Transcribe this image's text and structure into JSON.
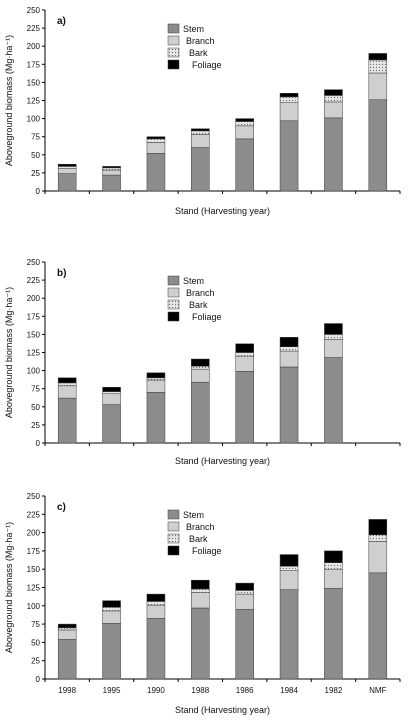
{
  "figure": {
    "panels": [
      "a)",
      "b)",
      "c)"
    ]
  },
  "chart_data": [
    {
      "type": "bar",
      "stacked": true,
      "panel_label": "a)",
      "categories": [
        "1998",
        "1995",
        "1990",
        "1988",
        "1986",
        "1984",
        "1982",
        "NMF"
      ],
      "show_tick_labels": false,
      "series": [
        {
          "name": "Stem",
          "color": "#8c8c8c",
          "pattern": "solid",
          "values": [
            24,
            22,
            52,
            60,
            72,
            97,
            101,
            126
          ]
        },
        {
          "name": "Branch",
          "color": "#cfcfcf",
          "pattern": "solid",
          "values": [
            7,
            7,
            15,
            18,
            18,
            25,
            22,
            37
          ]
        },
        {
          "name": "Bark",
          "color": "#e6e6e6",
          "pattern": "dotted",
          "values": [
            3,
            3,
            5,
            5,
            6,
            8,
            9,
            18
          ]
        },
        {
          "name": "Foliage",
          "color": "#000000",
          "pattern": "solid",
          "values": [
            3,
            2,
            3,
            3,
            4,
            5,
            8,
            9
          ]
        }
      ],
      "xlabel": "Stand (Harvesting year)",
      "ylabel": "Aboveground biomass (Mg·ha⁻¹)",
      "ylim": [
        0,
        250
      ],
      "yticks": [
        "0",
        "25",
        "50",
        "75",
        "100",
        "125",
        "150",
        "175",
        "200",
        "225",
        "250"
      ],
      "grid": false,
      "legend_position": "top-center"
    },
    {
      "type": "bar",
      "stacked": true,
      "panel_label": "b)",
      "categories": [
        "1998",
        "1995",
        "1990",
        "1988",
        "1986",
        "1984",
        "1982"
      ],
      "show_tick_labels": false,
      "series": [
        {
          "name": "Stem",
          "color": "#8c8c8c",
          "pattern": "solid",
          "values": [
            62,
            53,
            70,
            84,
            99,
            105,
            118
          ]
        },
        {
          "name": "Branch",
          "color": "#cfcfcf",
          "pattern": "solid",
          "values": [
            17,
            15,
            17,
            18,
            21,
            22,
            25
          ]
        },
        {
          "name": "Bark",
          "color": "#e6e6e6",
          "pattern": "dotted",
          "values": [
            4,
            3,
            3,
            4,
            5,
            6,
            7
          ]
        },
        {
          "name": "Foliage",
          "color": "#000000",
          "pattern": "solid",
          "values": [
            7,
            6,
            7,
            10,
            12,
            13,
            15
          ]
        }
      ],
      "xlabel": "Stand (Harvesting year)",
      "ylabel": "Aboveground biomass (Mg·ha⁻¹)",
      "ylim": [
        0,
        250
      ],
      "yticks": [
        "0",
        "25",
        "50",
        "75",
        "100",
        "125",
        "150",
        "175",
        "200",
        "225",
        "250"
      ],
      "grid": false,
      "legend_position": "top-center"
    },
    {
      "type": "bar",
      "stacked": true,
      "panel_label": "c)",
      "categories": [
        "1998",
        "1995",
        "1990",
        "1988",
        "1986",
        "1984",
        "1982",
        "NMF"
      ],
      "show_tick_labels": true,
      "series": [
        {
          "name": "Stem",
          "color": "#8c8c8c",
          "pattern": "solid",
          "values": [
            54,
            76,
            83,
            97,
            95,
            122,
            124,
            145
          ]
        },
        {
          "name": "Branch",
          "color": "#cfcfcf",
          "pattern": "solid",
          "values": [
            13,
            17,
            18,
            21,
            21,
            26,
            26,
            43
          ]
        },
        {
          "name": "Bark",
          "color": "#e6e6e6",
          "pattern": "dotted",
          "values": [
            3,
            5,
            5,
            5,
            5,
            6,
            9,
            9
          ]
        },
        {
          "name": "Foliage",
          "color": "#000000",
          "pattern": "solid",
          "values": [
            5,
            9,
            10,
            12,
            10,
            16,
            16,
            21
          ]
        }
      ],
      "xlabel": "Stand (Harvesting year)",
      "ylabel": "Aboveground biomass (Mg·ha⁻¹)",
      "ylim": [
        0,
        250
      ],
      "yticks": [
        "0",
        "25",
        "50",
        "75",
        "100",
        "125",
        "150",
        "175",
        "200",
        "225",
        "250"
      ],
      "grid": false,
      "legend_position": "top-center"
    }
  ]
}
